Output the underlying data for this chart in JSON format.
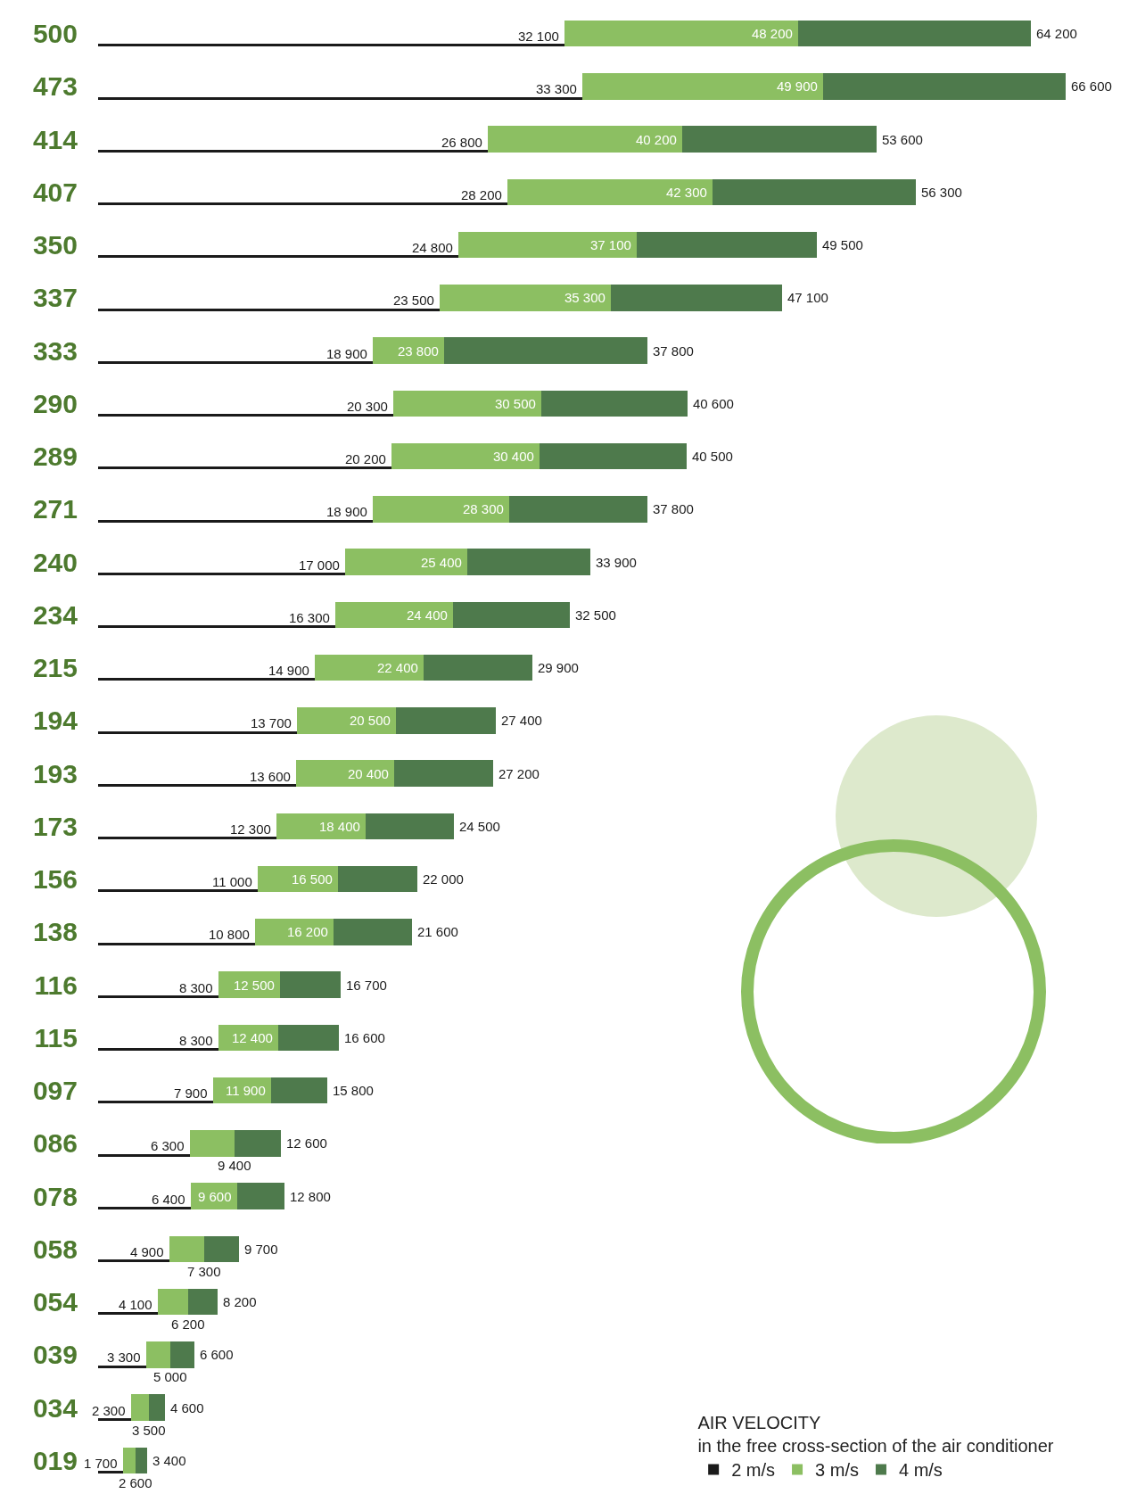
{
  "chart_data": {
    "type": "bar",
    "orientation": "horizontal",
    "stacked": true,
    "categories": [
      "500",
      "473",
      "414",
      "407",
      "350",
      "337",
      "333",
      "290",
      "289",
      "271",
      "240",
      "234",
      "215",
      "194",
      "193",
      "173",
      "156",
      "138",
      "116",
      "115",
      "097",
      "086",
      "078",
      "058",
      "054",
      "039",
      "034",
      "019"
    ],
    "series": [
      {
        "name": "2 m/s",
        "color": "#1a1a1a",
        "values": [
          32100,
          33300,
          26800,
          28200,
          24800,
          23500,
          18900,
          20300,
          20200,
          18900,
          17000,
          16300,
          14900,
          13700,
          13600,
          12300,
          11000,
          10800,
          8300,
          8300,
          7900,
          6300,
          6400,
          4900,
          4100,
          3300,
          2300,
          1700
        ],
        "value_labels": [
          "32 100",
          "33 300",
          "26 800",
          "28 200",
          "24 800",
          "23 500",
          "18 900",
          "20 300",
          "20 200",
          "18 900",
          "17 000",
          "16 300",
          "14 900",
          "13 700",
          "13 600",
          "12 300",
          "11 000",
          "10 800",
          "8 300",
          "8 300",
          "7 900",
          "6 300",
          "6 400",
          "4 900",
          "4 100",
          "3 300",
          "2 300",
          "1 700"
        ]
      },
      {
        "name": "3 m/s",
        "color": "#8cbf62",
        "values": [
          16100,
          16600,
          13400,
          14100,
          12300,
          11800,
          4900,
          10200,
          10200,
          9400,
          8400,
          8100,
          7500,
          6800,
          6800,
          6100,
          5500,
          5400,
          4200,
          4100,
          4000,
          3100,
          3200,
          2400,
          2100,
          1700,
          1200,
          900
        ]
      },
      {
        "name": "4 m/s",
        "color": "#4e7a4c",
        "values": [
          16000,
          16700,
          13400,
          14000,
          12400,
          11800,
          14000,
          10100,
          10100,
          9500,
          8500,
          8100,
          7500,
          6900,
          6800,
          6100,
          5500,
          5400,
          4200,
          4200,
          3900,
          3200,
          3200,
          2400,
          2000,
          1600,
          1100,
          800
        ]
      }
    ],
    "totals": [
      "64 200",
      "66 600",
      "53 600",
      "56 300",
      "49 500",
      "47 100",
      "37 800",
      "40 600",
      "40 500",
      "37 800",
      "33 900",
      "32 500",
      "29 900",
      "27 400",
      "27 200",
      "24 500",
      "22 000",
      "21 600",
      "16 700",
      "16 600",
      "15 800",
      "12 600",
      "12 800",
      "9 700",
      "8 200",
      "6 600",
      "4 600",
      "3 400"
    ],
    "annotations": [
      {
        "text": "48 200",
        "x": 48200,
        "y": "500"
      },
      {
        "text": "49 900",
        "x": 49900,
        "y": "473"
      },
      {
        "text": "40 200",
        "x": 40200,
        "y": "414"
      },
      {
        "text": "42 300",
        "x": 42300,
        "y": "407"
      },
      {
        "text": "37 100",
        "x": 37100,
        "y": "350"
      },
      {
        "text": "35 300",
        "x": 35300,
        "y": "337"
      },
      {
        "text": "23 800",
        "x": 23800,
        "y": "333"
      },
      {
        "text": "30 500",
        "x": 30500,
        "y": "290"
      },
      {
        "text": "30 400",
        "x": 30400,
        "y": "289"
      },
      {
        "text": "28 300",
        "x": 28300,
        "y": "271"
      },
      {
        "text": "25 400",
        "x": 25400,
        "y": "240"
      },
      {
        "text": "24 400",
        "x": 24400,
        "y": "234"
      },
      {
        "text": "22 400",
        "x": 22400,
        "y": "215"
      },
      {
        "text": "20 500",
        "x": 20500,
        "y": "194"
      },
      {
        "text": "20 400",
        "x": 20400,
        "y": "193"
      },
      {
        "text": "18 400",
        "x": 18400,
        "y": "173"
      },
      {
        "text": "16 500",
        "x": 16500,
        "y": "156"
      },
      {
        "text": "16 200",
        "x": 16200,
        "y": "138"
      },
      {
        "text": "12 500",
        "x": 12500,
        "y": "116"
      },
      {
        "text": "12 400",
        "x": 12400,
        "y": "115"
      },
      {
        "text": "11 900",
        "x": 11900,
        "y": "097"
      },
      {
        "text": "9 400",
        "x": 9400,
        "y": "086"
      },
      {
        "text": "9 600",
        "x": 9600,
        "y": "078"
      },
      {
        "text": "7 300",
        "x": 7300,
        "y": "058"
      },
      {
        "text": "6 200",
        "x": 6200,
        "y": "054"
      },
      {
        "text": "5 000",
        "x": 5000,
        "y": "039"
      },
      {
        "text": "3 500",
        "x": 3500,
        "y": "034"
      },
      {
        "text": "2 600",
        "x": 2600,
        "y": "019"
      }
    ],
    "tick_labels": "y",
    "legend": "bottom right",
    "legend_title": "AIR VELOCITY\nin the free cross-section of the air conditioner"
  }
}
